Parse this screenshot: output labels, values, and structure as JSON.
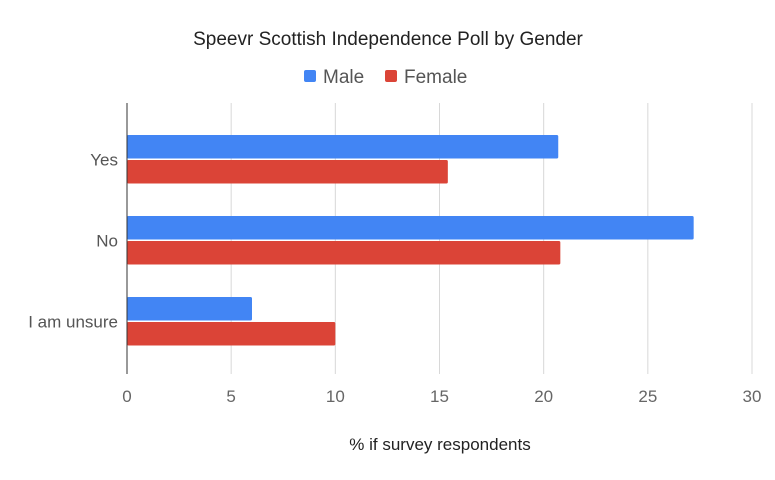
{
  "chart_data": {
    "type": "bar",
    "orientation": "horizontal",
    "title": "Speevr Scottish Independence Poll by Gender",
    "categories": [
      "Yes",
      "No",
      "I am unsure"
    ],
    "series": [
      {
        "name": "Male",
        "color": "#4285f4",
        "values": [
          20.7,
          27.2,
          6.0
        ]
      },
      {
        "name": "Female",
        "color": "#db4437",
        "values": [
          15.4,
          20.8,
          10.0
        ]
      }
    ],
    "xlabel": "% if survey respondents",
    "ylabel": "",
    "xlim": [
      0,
      30
    ],
    "xticks": [
      "0",
      "5",
      "10",
      "15",
      "20",
      "25",
      "30"
    ],
    "grid": true,
    "legend_position": "top"
  }
}
